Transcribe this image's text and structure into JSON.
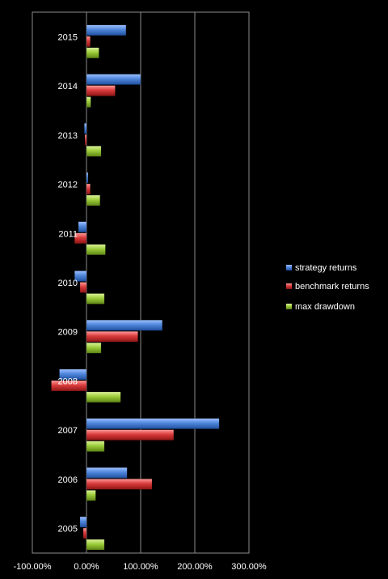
{
  "chart_data": {
    "type": "bar",
    "orientation": "horizontal",
    "title": "",
    "xlabel": "",
    "ylabel": "",
    "categories": [
      "2005",
      "2006",
      "2007",
      "2008",
      "2009",
      "2010",
      "2011",
      "2012",
      "2013",
      "2014",
      "2015"
    ],
    "series": [
      {
        "name": "strategy returns",
        "color": "#4a7fd4",
        "values": [
          -12,
          75,
          245,
          -50,
          140,
          -22,
          -15,
          0,
          -4,
          100,
          73
        ]
      },
      {
        "name": "benchmark returns",
        "color": "#d43a3a",
        "values": [
          -6,
          121,
          161,
          -65,
          95,
          -12,
          -22,
          7,
          -3,
          53,
          7
        ]
      },
      {
        "name": "max drawdown",
        "color": "#9ccc3a",
        "values": [
          33,
          17,
          33,
          63,
          27,
          33,
          35,
          25,
          27,
          8,
          23
        ]
      }
    ],
    "xlim": [
      -100,
      300
    ],
    "xticks": [
      "-100.00%",
      "0.00%",
      "100.00%",
      "200.00%",
      "300.00%"
    ],
    "xtick_values": [
      -100,
      0,
      100,
      200,
      300
    ],
    "grid": "vertical",
    "legend_position": "right"
  }
}
